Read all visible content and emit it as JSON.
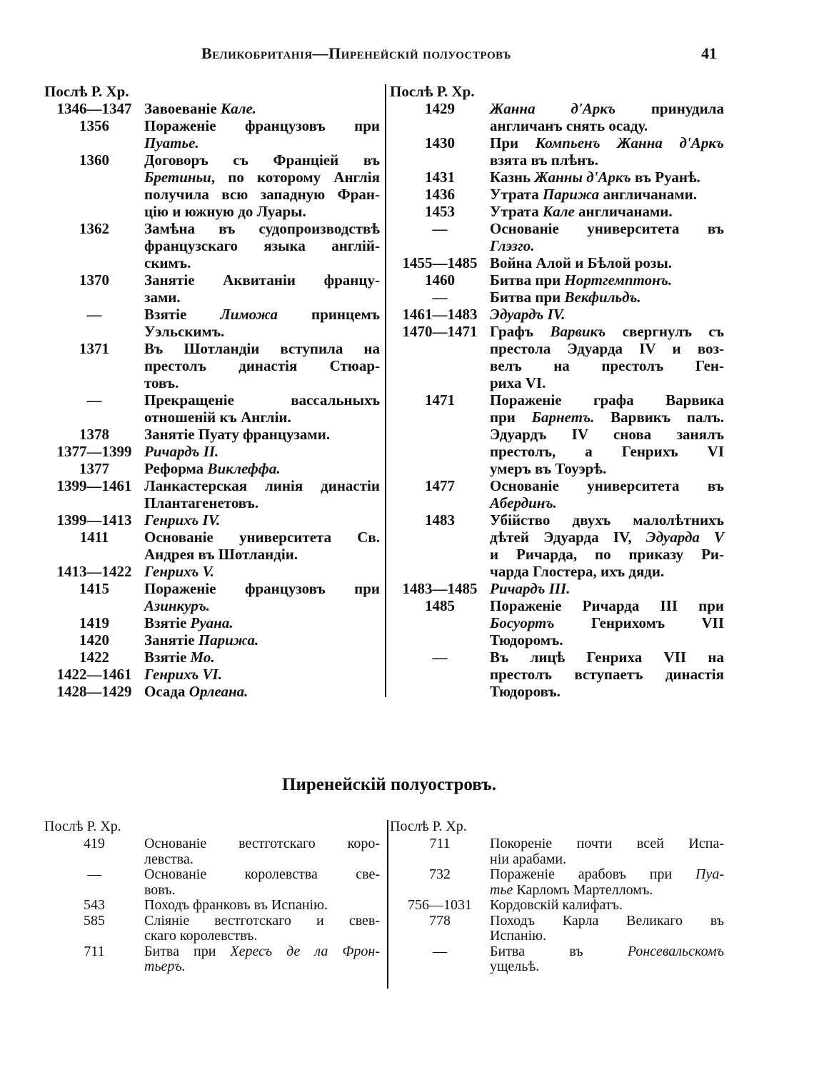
{
  "header": {
    "title": "Великобританія—Пиренейскій полуостровъ",
    "page_number": "41"
  },
  "top": {
    "left": {
      "era": "Послѣ Р. Хр.",
      "entries": [
        {
          "date": "1346—1347",
          "lines": [
            [
              "Завоеваніе ",
              {
                "i": "Кале."
              }
            ]
          ]
        },
        {
          "date": "1356",
          "lines": [
            [
              "Пораженіе французовъ при"
            ],
            [
              {
                "i": "Пуатье."
              }
            ]
          ]
        },
        {
          "date": "1360",
          "lines": [
            [
              "Договоръ съ Франціей въ"
            ],
            [
              {
                "i": "Бретиньи"
              },
              ", по которому Англія"
            ],
            [
              "получила всю западную Фран-"
            ],
            [
              "цію и южную до Луары."
            ]
          ]
        },
        {
          "date": "1362",
          "lines": [
            [
              "Замѣна въ судопроизводствѣ"
            ],
            [
              "французскаго языка англій-"
            ],
            [
              "скимъ."
            ]
          ]
        },
        {
          "date": "1370",
          "lines": [
            [
              "Занятіе Аквитаніи францу-"
            ],
            [
              "зами."
            ]
          ]
        },
        {
          "date": "—",
          "lines": [
            [
              "Взятіе ",
              {
                "i": "Лиможа"
              },
              " принцемъ"
            ],
            [
              "Уэльскимъ."
            ]
          ]
        },
        {
          "date": "1371",
          "lines": [
            [
              "Въ Шотландіи вступила на"
            ],
            [
              "престолъ династія Стюар-"
            ],
            [
              "товъ."
            ]
          ]
        },
        {
          "date": "—",
          "lines": [
            [
              "Прекращеніе вассальныхъ"
            ],
            [
              "отношеній къ Англіи."
            ]
          ]
        },
        {
          "date": "1378",
          "lines": [
            [
              "Занятіе Пуату французами."
            ]
          ]
        },
        {
          "date": "1377—1399",
          "lines": [
            [
              {
                "i": "Ричардъ II."
              }
            ]
          ]
        },
        {
          "date": "1377",
          "lines": [
            [
              "Реформа ",
              {
                "i": "Виклеффа."
              }
            ]
          ]
        },
        {
          "date": "1399—1461",
          "lines": [
            [
              "Ланкастерская линія династіи"
            ],
            [
              "Плантагенетовъ."
            ]
          ]
        },
        {
          "date": "1399—1413",
          "lines": [
            [
              {
                "i": "Генрихъ IV."
              }
            ]
          ]
        },
        {
          "date": "1411",
          "lines": [
            [
              "Основаніе университета Св."
            ],
            [
              "Андрея въ Шотландіи."
            ]
          ]
        },
        {
          "date": "1413—1422",
          "lines": [
            [
              {
                "i": "Генрихъ V."
              }
            ]
          ]
        },
        {
          "date": "1415",
          "lines": [
            [
              "Пораженіе французовъ при"
            ],
            [
              {
                "i": "Азинкуръ."
              }
            ]
          ]
        },
        {
          "date": "1419",
          "lines": [
            [
              "Взятіе ",
              {
                "i": "Руана."
              }
            ]
          ]
        },
        {
          "date": "1420",
          "lines": [
            [
              "Занятіе ",
              {
                "i": "Парижа."
              }
            ]
          ]
        },
        {
          "date": "1422",
          "lines": [
            [
              "Взятіе ",
              {
                "i": "Мо."
              }
            ]
          ]
        },
        {
          "date": "1422—1461",
          "lines": [
            [
              {
                "i": "Генрихъ VI."
              }
            ]
          ]
        },
        {
          "date": "1428—1429",
          "lines": [
            [
              "Осада ",
              {
                "i": "Орлеана."
              }
            ]
          ]
        }
      ]
    },
    "right": {
      "era": "Послѣ Р. Хр.",
      "entries": [
        {
          "date": "1429",
          "lines": [
            [
              {
                "i": "Жанна д'Аркъ"
              },
              " принудила"
            ],
            [
              "англичанъ снять осаду."
            ]
          ]
        },
        {
          "date": "1430",
          "lines": [
            [
              "При ",
              {
                "i": "Компьенъ Жанна д'Аркъ"
              }
            ],
            [
              "взята въ плѣнъ."
            ]
          ]
        },
        {
          "date": "1431",
          "lines": [
            [
              "Казнь ",
              {
                "i": "Жанны д'Аркъ"
              },
              " въ Руанѣ."
            ]
          ]
        },
        {
          "date": "1436",
          "lines": [
            [
              "Утрата ",
              {
                "i": "Парижа"
              },
              " англичанами."
            ]
          ]
        },
        {
          "date": "1453",
          "lines": [
            [
              "Утрата ",
              {
                "i": "Кале"
              },
              " англичанами."
            ]
          ]
        },
        {
          "date": "—",
          "lines": [
            [
              "Основаніе университета въ"
            ],
            [
              {
                "i": "Глэзго."
              }
            ]
          ]
        },
        {
          "date": "1455—1485",
          "lines": [
            [
              "Война Алой и Бѣлой розы."
            ]
          ]
        },
        {
          "date": "1460",
          "lines": [
            [
              "Битва при ",
              {
                "i": "Нортгемптонъ."
              }
            ]
          ]
        },
        {
          "date": "—",
          "lines": [
            [
              "Битва при ",
              {
                "i": "Векфильдъ."
              }
            ]
          ]
        },
        {
          "date": "1461—1483",
          "lines": [
            [
              {
                "i": "Эдуардъ IV."
              }
            ]
          ]
        },
        {
          "date": "1470—1471",
          "lines": [
            [
              "Графъ ",
              {
                "i": "Варвикъ"
              },
              " свергнулъ съ"
            ],
            [
              "престола Эдуарда IV и воз-"
            ],
            [
              "велъ на престолъ Ген-"
            ],
            [
              "риха VI."
            ]
          ]
        },
        {
          "date": "1471",
          "lines": [
            [
              "Пораженіе графа Варвика"
            ],
            [
              "при ",
              {
                "i": "Барнетъ."
              },
              " Варвикъ палъ."
            ],
            [
              "Эдуардъ IV снова занялъ"
            ],
            [
              "престолъ, а Генрихъ VI"
            ],
            [
              "умеръ въ Тоуэрѣ."
            ]
          ]
        },
        {
          "date": "1477",
          "lines": [
            [
              "Основаніе университета въ"
            ],
            [
              {
                "i": "Абердинъ."
              }
            ]
          ]
        },
        {
          "date": "1483",
          "lines": [
            [
              "Убійство двухъ малолѣтнихъ"
            ],
            [
              "дѣтей Эдуарда IV, ",
              {
                "i": "Эдуарда V"
              }
            ],
            [
              "и Ричарда, по приказу Ри-"
            ],
            [
              "чарда Глостера, ихъ дяди."
            ]
          ]
        },
        {
          "date": "1483—1485",
          "lines": [
            [
              {
                "i": "Ричардъ III."
              }
            ]
          ]
        },
        {
          "date": "1485",
          "lines": [
            [
              "Пораженіе Ричарда III при"
            ],
            [
              {
                "i": "Босуортъ"
              },
              " Генрихомъ VII"
            ],
            [
              "Тюдоромъ."
            ]
          ]
        },
        {
          "date": "—",
          "lines": [
            [
              "Въ лицѣ Генриха VII на"
            ],
            [
              "престолъ вступаетъ династія"
            ],
            [
              "Тюдоровъ."
            ]
          ]
        }
      ]
    }
  },
  "section_title": "Пиренейскій полуостровъ.",
  "bottom": {
    "left": {
      "era": "Послѣ Р. Хр.",
      "entries": [
        {
          "date": "419",
          "lines": [
            [
              "Основаніе вестготскаго коро-"
            ],
            [
              "левства."
            ]
          ]
        },
        {
          "date": "—",
          "lines": [
            [
              "Основаніе королевства све-"
            ],
            [
              "вовъ."
            ]
          ]
        },
        {
          "date": "543",
          "lines": [
            [
              "Походъ франковъ въ Испанію."
            ]
          ]
        },
        {
          "date": "585",
          "lines": [
            [
              "Сліяніе вестготскаго и свев-"
            ],
            [
              "скаго королевствъ."
            ]
          ]
        },
        {
          "date": "711",
          "lines": [
            [
              "Битва при ",
              {
                "i": "Хересъ де ла Фрон-"
              }
            ],
            [
              {
                "i": "тьеръ."
              }
            ]
          ]
        }
      ]
    },
    "right": {
      "era": "Послѣ Р. Хр.",
      "entries": [
        {
          "date": "711",
          "lines": [
            [
              "Покореніе почти всей Испа-"
            ],
            [
              "ніи арабами."
            ]
          ]
        },
        {
          "date": "732",
          "lines": [
            [
              "Пораженіе арабовъ при ",
              {
                "i": "Пуа-"
              }
            ],
            [
              {
                "i": "тье"
              },
              " Карломъ Мартелломъ."
            ]
          ]
        },
        {
          "date": "756—1031",
          "lines": [
            [
              "Кордовскій калифатъ."
            ]
          ]
        },
        {
          "date": "778",
          "lines": [
            [
              "Походъ Карла Великаго въ"
            ],
            [
              "Испанію."
            ]
          ]
        },
        {
          "date": "—",
          "lines": [
            [
              "Битва въ ",
              {
                "i": "Ронсевальскомъ"
              }
            ],
            [
              "ущельѣ."
            ]
          ]
        }
      ]
    }
  }
}
